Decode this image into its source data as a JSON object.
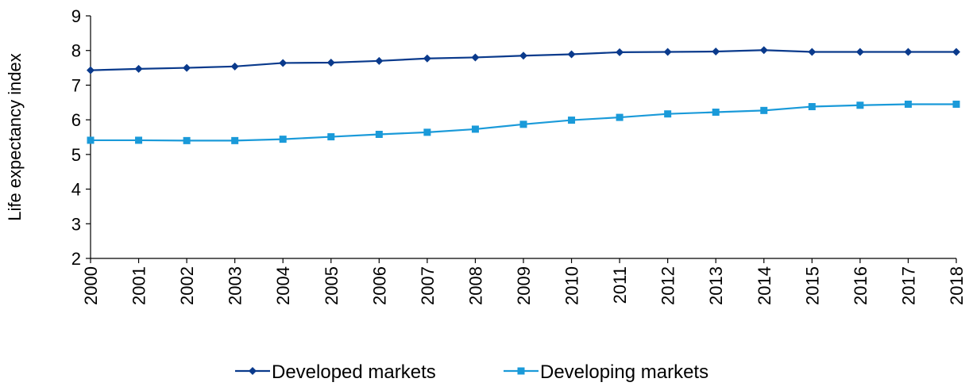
{
  "chart_data": {
    "type": "line",
    "ylabel": "Life expectancy index",
    "ylim": [
      2,
      9
    ],
    "yticks": [
      2,
      3,
      4,
      5,
      6,
      7,
      8,
      9
    ],
    "categories": [
      "2000",
      "2001",
      "2002",
      "2003",
      "2004",
      "2005",
      "2006",
      "2007",
      "2008",
      "2009",
      "2010",
      "2011",
      "2012",
      "2013",
      "2014",
      "2015",
      "2016",
      "2017",
      "2018"
    ],
    "series": [
      {
        "name": "Developed markets",
        "color": "#0a3a8c",
        "marker": "diamond",
        "values": [
          7.43,
          7.47,
          7.5,
          7.54,
          7.64,
          7.65,
          7.7,
          7.77,
          7.8,
          7.85,
          7.89,
          7.95,
          7.96,
          7.97,
          8.01,
          7.96,
          7.96,
          7.96,
          7.96
        ]
      },
      {
        "name": "Developing markets",
        "color": "#1a9ad9",
        "marker": "square",
        "values": [
          5.41,
          5.41,
          5.4,
          5.4,
          5.44,
          5.51,
          5.58,
          5.64,
          5.73,
          5.87,
          5.99,
          6.07,
          6.17,
          6.22,
          6.27,
          6.38,
          6.42,
          6.45,
          6.45
        ]
      }
    ],
    "legend": "bottom-center",
    "grid": false
  }
}
